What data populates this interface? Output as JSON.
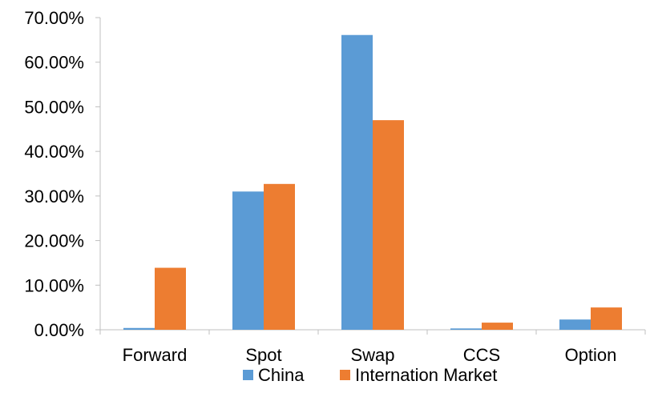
{
  "chart_data": {
    "type": "bar",
    "categories": [
      "Forward",
      "Spot",
      "Swap",
      "CCS",
      "Option"
    ],
    "series": [
      {
        "name": "China",
        "values": [
          0.4,
          31.0,
          66.1,
          0.3,
          2.3
        ],
        "color": "#5B9BD5"
      },
      {
        "name": "Internation Market",
        "values": [
          13.9,
          32.7,
          47.0,
          1.6,
          5.0
        ],
        "color": "#ED7D31"
      }
    ],
    "y_ticks": [
      "0.00%",
      "10.00%",
      "20.00%",
      "30.00%",
      "40.00%",
      "50.00%",
      "60.00%",
      "70.00%"
    ],
    "ylim": [
      0,
      70
    ],
    "grid": false,
    "legend_position": "bottom"
  }
}
